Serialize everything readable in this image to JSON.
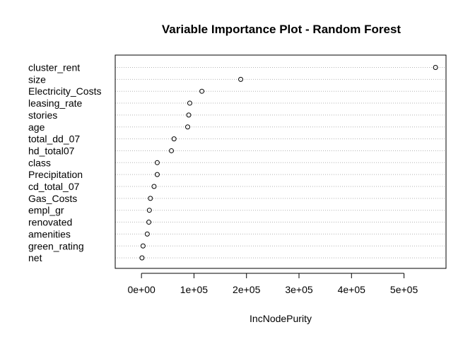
{
  "chart_data": {
    "type": "scatter",
    "title": "Variable Importance Plot - Random Forest",
    "xlabel": "IncNodePurity",
    "ylabel": "",
    "xlim": [
      -50000,
      580000
    ],
    "xticks": [
      0,
      100000,
      200000,
      300000,
      400000,
      500000
    ],
    "xtick_labels": [
      "0e+00",
      "1e+05",
      "2e+05",
      "3e+05",
      "4e+05",
      "5e+05"
    ],
    "grid": "dotted horizontal guide per variable",
    "variables": [
      "cluster_rent",
      "size",
      "Electricity_Costs",
      "leasing_rate",
      "stories",
      "age",
      "total_dd_07",
      "hd_total07",
      "class",
      "Precipitation",
      "cd_total_07",
      "Gas_Costs",
      "empl_gr",
      "renovated",
      "amenities",
      "green_rating",
      "net"
    ],
    "values": [
      560000,
      189000,
      115000,
      92000,
      90000,
      88000,
      62000,
      57000,
      30000,
      30000,
      24000,
      17000,
      15000,
      14000,
      11000,
      3000,
      1000
    ]
  },
  "style": {
    "point_color": "#000000",
    "grid_color": "#b3b3b3",
    "axis_color": "#000000"
  }
}
